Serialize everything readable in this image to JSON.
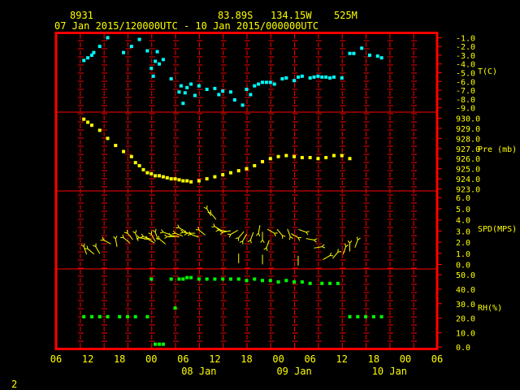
{
  "header": {
    "station_id": "8931",
    "location": "83.89S   134.15W",
    "elevation": "525M",
    "time_range": "07 Jan 2015/120000UTC - 10 Jan 2015/000000UTC"
  },
  "footer": {
    "page_number": "2"
  },
  "colors": {
    "background": "#000000",
    "frame": "#ff0000",
    "text": "#ffff00",
    "temperature": "#00ffff",
    "pressure": "#ffff00",
    "wind": "#ffff00",
    "rh": "#00ff00"
  },
  "chart_data": {
    "type": "scatter",
    "x_ticks": [
      "06",
      "12",
      "18",
      "00",
      "06",
      "12",
      "18",
      "00",
      "06",
      "12",
      "18",
      "00",
      "06"
    ],
    "date_labels": [
      {
        "label": "08 Jan",
        "hour": 42
      },
      {
        "label": "09 Jan",
        "hour": 66
      },
      {
        "label": "10 Jan",
        "hour": 90
      }
    ],
    "xlim": [
      6,
      102
    ],
    "panels": [
      {
        "id": "temperature",
        "label": "T(C)",
        "ylim": [
          -9.5,
          -0.5
        ],
        "ticks": [
          -9,
          -8,
          -7,
          -6,
          -5,
          -4,
          -3,
          -2,
          -1
        ],
        "tick_labels": [
          "-9.0",
          "-8.0",
          "-7.0",
          "-6.0",
          "-5.0",
          "-4.0",
          "-3.0",
          "-2.0",
          "-1.0"
        ],
        "points": [
          [
            13,
            -3.6
          ],
          [
            14,
            -3.3
          ],
          [
            15,
            -3.0
          ],
          [
            15.5,
            -2.7
          ],
          [
            17,
            -2.0
          ],
          [
            19,
            -1.0
          ],
          [
            23,
            -2.7
          ],
          [
            25,
            -2.0
          ],
          [
            27,
            -1.2
          ],
          [
            29,
            -2.5
          ],
          [
            30,
            -4.5
          ],
          [
            30.5,
            -5.4
          ],
          [
            31,
            -3.7
          ],
          [
            31.5,
            -2.6
          ],
          [
            32,
            -4.0
          ],
          [
            33,
            -3.5
          ],
          [
            35,
            -5.7
          ],
          [
            37,
            -7.2
          ],
          [
            37.5,
            -6.5
          ],
          [
            38,
            -8.5
          ],
          [
            38.5,
            -7.3
          ],
          [
            39,
            -6.7
          ],
          [
            40,
            -6.3
          ],
          [
            41,
            -7.6
          ],
          [
            42,
            -6.5
          ],
          [
            44,
            -6.9
          ],
          [
            46,
            -6.8
          ],
          [
            47,
            -7.5
          ],
          [
            48,
            -7.1
          ],
          [
            50,
            -7.2
          ],
          [
            51,
            -8.1
          ],
          [
            53,
            -8.7
          ],
          [
            54,
            -6.9
          ],
          [
            55,
            -7.5
          ],
          [
            56,
            -6.5
          ],
          [
            57,
            -6.3
          ],
          [
            58,
            -6.1
          ],
          [
            59,
            -6.1
          ],
          [
            60,
            -6.1
          ],
          [
            61,
            -6.3
          ],
          [
            63,
            -5.7
          ],
          [
            64,
            -5.6
          ],
          [
            66,
            -5.9
          ],
          [
            67,
            -5.5
          ],
          [
            68,
            -5.4
          ],
          [
            70,
            -5.6
          ],
          [
            71,
            -5.5
          ],
          [
            72,
            -5.4
          ],
          [
            73,
            -5.5
          ],
          [
            74,
            -5.5
          ],
          [
            75,
            -5.6
          ],
          [
            76,
            -5.5
          ],
          [
            78,
            -5.6
          ],
          [
            80,
            -2.8
          ],
          [
            81,
            -2.8
          ],
          [
            83,
            -2.2
          ],
          [
            85,
            -3.0
          ],
          [
            87,
            -3.1
          ],
          [
            88,
            -3.3
          ]
        ]
      },
      {
        "id": "pressure",
        "label": "Pre (mb)",
        "ylim": [
          922.8,
          930.6
        ],
        "ticks": [
          923,
          924,
          925,
          926,
          927,
          928,
          929,
          930
        ],
        "tick_labels": [
          "923.0",
          "924.0",
          "925.0",
          "926.0",
          "927.0",
          "928.0",
          "929.0",
          "930.0"
        ],
        "points": [
          [
            13,
            929.9
          ],
          [
            14,
            929.6
          ],
          [
            15,
            929.3
          ],
          [
            17,
            928.8
          ],
          [
            19,
            928.0
          ],
          [
            21,
            927.3
          ],
          [
            23,
            926.7
          ],
          [
            25,
            926.2
          ],
          [
            26,
            925.6
          ],
          [
            27,
            925.3
          ],
          [
            28,
            924.9
          ],
          [
            29,
            924.6
          ],
          [
            30,
            924.5
          ],
          [
            31,
            924.3
          ],
          [
            32,
            924.3
          ],
          [
            33,
            924.2
          ],
          [
            34,
            924.1
          ],
          [
            35,
            924.0
          ],
          [
            36,
            924.0
          ],
          [
            37,
            923.9
          ],
          [
            38,
            923.8
          ],
          [
            39,
            923.8
          ],
          [
            40,
            923.7
          ],
          [
            42,
            923.8
          ],
          [
            44,
            924.0
          ],
          [
            46,
            924.2
          ],
          [
            48,
            924.4
          ],
          [
            50,
            924.6
          ],
          [
            52,
            924.8
          ],
          [
            54,
            925.0
          ],
          [
            56,
            925.3
          ],
          [
            58,
            925.7
          ],
          [
            60,
            926.0
          ],
          [
            62,
            926.2
          ],
          [
            64,
            926.3
          ],
          [
            66,
            926.2
          ],
          [
            68,
            926.1
          ],
          [
            70,
            926.1
          ],
          [
            72,
            926.0
          ],
          [
            74,
            926.1
          ],
          [
            76,
            926.3
          ],
          [
            78,
            926.3
          ],
          [
            80,
            926.0
          ]
        ]
      },
      {
        "id": "wind",
        "label": "SPD(MPS)",
        "ylim": [
          -0.4,
          6.6
        ],
        "ticks": [
          0,
          1,
          2,
          3,
          4,
          5,
          6
        ],
        "tick_labels": [
          "0.0",
          "1.0",
          "2.0",
          "3.0",
          "4.0",
          "5.0",
          "6.0"
        ],
        "points": [
          [
            13,
            1.6,
            160
          ],
          [
            14,
            1.4,
            130
          ],
          [
            16,
            1.6,
            150
          ],
          [
            18,
            2.2,
            120
          ],
          [
            21,
            2.3,
            170
          ],
          [
            23,
            2.4,
            130
          ],
          [
            24,
            2.8,
            140
          ],
          [
            26,
            2.8,
            160
          ],
          [
            27,
            2.4,
            100
          ],
          [
            28,
            2.5,
            110
          ],
          [
            29,
            2.3,
            120
          ],
          [
            30,
            2.7,
            150
          ],
          [
            31,
            2.9,
            160
          ],
          [
            32,
            2.3,
            130
          ],
          [
            33,
            2.9,
            110
          ],
          [
            34,
            2.5,
            90
          ],
          [
            35,
            2.6,
            100
          ],
          [
            36,
            2.8,
            110
          ],
          [
            37,
            3.3,
            120
          ],
          [
            38,
            2.9,
            100
          ],
          [
            39,
            2.8,
            90
          ],
          [
            40,
            2.7,
            110
          ],
          [
            42,
            3.1,
            130
          ],
          [
            44,
            5.0,
            150
          ],
          [
            45,
            4.6,
            140
          ],
          [
            46,
            3.4,
            120
          ],
          [
            47,
            3.1,
            100
          ],
          [
            48,
            2.9,
            80
          ],
          [
            50,
            2.7,
            60
          ],
          [
            52,
            2.4,
            40
          ],
          [
            53,
            2.1,
            30
          ],
          [
            55,
            2.2,
            20
          ],
          [
            57,
            2.8,
            10
          ],
          [
            58,
            2.2,
            0
          ],
          [
            59,
            1.5,
            20
          ],
          [
            61,
            2.8,
            300
          ],
          [
            63,
            2.6,
            320
          ],
          [
            65,
            2.5,
            340
          ],
          [
            67,
            2.4,
            300
          ],
          [
            69,
            2.9,
            290
          ],
          [
            71,
            2.2,
            280
          ],
          [
            73,
            1.6,
            260
          ],
          [
            75,
            0.8,
            240
          ],
          [
            77,
            1.1,
            220
          ],
          [
            79,
            1.6,
            200
          ],
          [
            80,
            1.9,
            180
          ],
          [
            82,
            2.2,
            200
          ]
        ],
        "calm_marks": [
          [
            52,
            0.4
          ],
          [
            58,
            0.3
          ],
          [
            67,
            0.2
          ]
        ]
      },
      {
        "id": "rh",
        "label": "RH(%)",
        "ylim": [
          -1,
          54
        ],
        "ticks": [
          0,
          10,
          20,
          30,
          40,
          50
        ],
        "tick_labels": [
          "0.0",
          "10.0",
          "20.0",
          "30.0",
          "40.0",
          "50.0"
        ],
        "points": [
          [
            13,
            21
          ],
          [
            15,
            21
          ],
          [
            17,
            21
          ],
          [
            19,
            21
          ],
          [
            22,
            21
          ],
          [
            24,
            21
          ],
          [
            26,
            21
          ],
          [
            29,
            21
          ],
          [
            30,
            47
          ],
          [
            31,
            2
          ],
          [
            32,
            2
          ],
          [
            33,
            2
          ],
          [
            35,
            47
          ],
          [
            36,
            27
          ],
          [
            37,
            47
          ],
          [
            38,
            47
          ],
          [
            39,
            48
          ],
          [
            40,
            48
          ],
          [
            42,
            47
          ],
          [
            44,
            47
          ],
          [
            46,
            47
          ],
          [
            48,
            47
          ],
          [
            50,
            47
          ],
          [
            52,
            47
          ],
          [
            54,
            46
          ],
          [
            56,
            47
          ],
          [
            58,
            46
          ],
          [
            60,
            46
          ],
          [
            62,
            45
          ],
          [
            64,
            46
          ],
          [
            66,
            45
          ],
          [
            68,
            45
          ],
          [
            70,
            44
          ],
          [
            73,
            44
          ],
          [
            75,
            44
          ],
          [
            77,
            44
          ],
          [
            80,
            21
          ],
          [
            82,
            21
          ],
          [
            84,
            21
          ],
          [
            86,
            21
          ],
          [
            88,
            21
          ]
        ]
      }
    ]
  }
}
